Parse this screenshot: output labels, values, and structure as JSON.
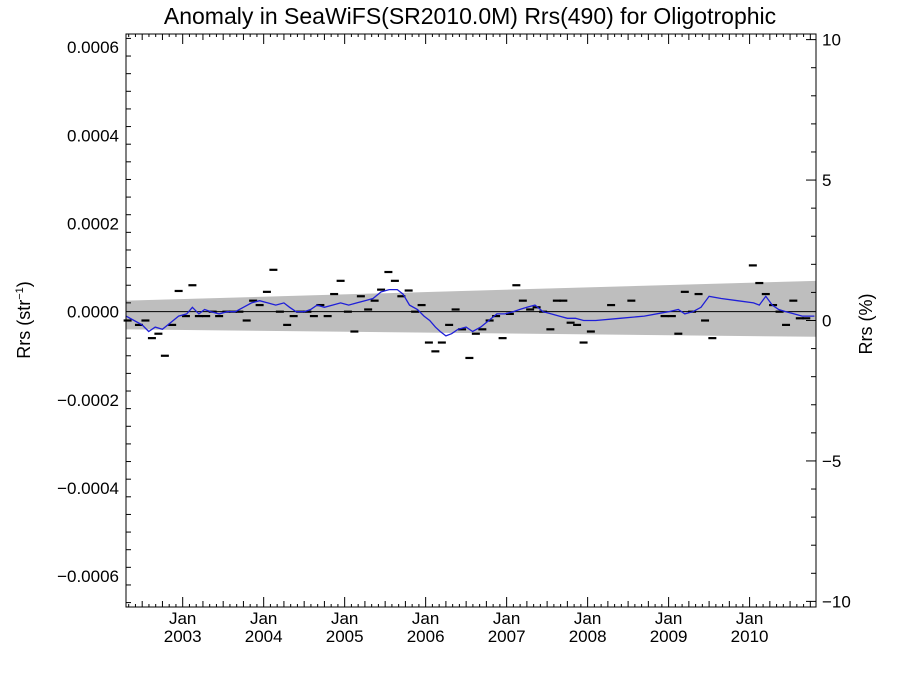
{
  "chart_data": {
    "type": "line",
    "title": "Anomaly in SeaWiFS(SR2010.0M) Rrs(490) for Oligotrophic",
    "ylabel_left": "Rrs (str",
    "ylabel_left_sup": "−1",
    "ylabel_left_close": ")",
    "ylabel_right": "Rrs (%)",
    "ylim": [
      -0.00067,
      0.00063
    ],
    "ylim_right": [
      -10.2,
      10.2
    ],
    "xlim": [
      2002.3,
      2010.82
    ],
    "left_ticks": [
      {
        "v": 0.0006,
        "label": "0.0006"
      },
      {
        "v": 0.0004,
        "label": "0.0004"
      },
      {
        "v": 0.0002,
        "label": "0.0002"
      },
      {
        "v": 0.0,
        "label": "0.0000"
      },
      {
        "v": -0.0002,
        "label": "−0.0002"
      },
      {
        "v": -0.0004,
        "label": "−0.0004"
      },
      {
        "v": -0.0006,
        "label": "−0.0006"
      }
    ],
    "right_ticks": [
      {
        "v": 10,
        "label": "10"
      },
      {
        "v": 5,
        "label": "5"
      },
      {
        "v": 0,
        "label": "0"
      },
      {
        "v": -5,
        "label": "−5"
      },
      {
        "v": -10,
        "label": "−10"
      }
    ],
    "x_ticks": [
      {
        "v": 2003.0,
        "month": "Jan",
        "year": "2003"
      },
      {
        "v": 2004.0,
        "month": "Jan",
        "year": "2004"
      },
      {
        "v": 2005.0,
        "month": "Jan",
        "year": "2005"
      },
      {
        "v": 2006.0,
        "month": "Jan",
        "year": "2006"
      },
      {
        "v": 2007.0,
        "month": "Jan",
        "year": "2007"
      },
      {
        "v": 2008.0,
        "month": "Jan",
        "year": "2008"
      },
      {
        "v": 2009.0,
        "month": "Jan",
        "year": "2009"
      },
      {
        "v": 2010.0,
        "month": "Jan",
        "year": "2010"
      }
    ],
    "band": {
      "x": [
        2002.3,
        2010.82
      ],
      "upper": [
        2.5e-05,
        7e-05
      ],
      "lower": [
        -4e-05,
        -5.7e-05
      ]
    },
    "points": [
      [
        2002.32,
        -2e-05
      ],
      [
        2002.46,
        -3e-05
      ],
      [
        2002.54,
        -2e-05
      ],
      [
        2002.62,
        -6e-05
      ],
      [
        2002.7,
        -5e-05
      ],
      [
        2002.78,
        -0.0001
      ],
      [
        2002.87,
        -3e-05
      ],
      [
        2002.95,
        4.7e-05
      ],
      [
        2003.04,
        -1e-05
      ],
      [
        2003.12,
        6e-05
      ],
      [
        2003.2,
        -1e-05
      ],
      [
        2003.29,
        -1e-05
      ],
      [
        2003.37,
        0.0
      ],
      [
        2003.45,
        -1e-05
      ],
      [
        2003.54,
        0.0
      ],
      [
        2003.62,
        0.0
      ],
      [
        2003.7,
        0.0
      ],
      [
        2003.79,
        -2e-05
      ],
      [
        2003.87,
        2.5e-05
      ],
      [
        2003.95,
        1.5e-05
      ],
      [
        2004.04,
        4.5e-05
      ],
      [
        2004.12,
        9.5e-05
      ],
      [
        2004.2,
        0.0
      ],
      [
        2004.29,
        -3e-05
      ],
      [
        2004.37,
        -1e-05
      ],
      [
        2004.45,
        0.0
      ],
      [
        2004.54,
        0.0
      ],
      [
        2004.62,
        -1e-05
      ],
      [
        2004.7,
        1.5e-05
      ],
      [
        2004.79,
        -1e-05
      ],
      [
        2004.87,
        4e-05
      ],
      [
        2004.95,
        7e-05
      ],
      [
        2005.04,
        0.0
      ],
      [
        2005.12,
        -4.5e-05
      ],
      [
        2005.2,
        3.5e-05
      ],
      [
        2005.29,
        5e-06
      ],
      [
        2005.37,
        2.5e-05
      ],
      [
        2005.45,
        5e-05
      ],
      [
        2005.54,
        9e-05
      ],
      [
        2005.62,
        7e-05
      ],
      [
        2005.7,
        3.5e-05
      ],
      [
        2005.79,
        4.8e-05
      ],
      [
        2005.87,
        0.0
      ],
      [
        2005.95,
        1.5e-05
      ],
      [
        2006.04,
        -7e-05
      ],
      [
        2006.12,
        -9e-05
      ],
      [
        2006.2,
        -7e-05
      ],
      [
        2006.29,
        -3e-05
      ],
      [
        2006.37,
        5e-06
      ],
      [
        2006.45,
        -4e-05
      ],
      [
        2006.54,
        -0.000105
      ],
      [
        2006.62,
        -5e-05
      ],
      [
        2006.7,
        -4e-05
      ],
      [
        2006.79,
        -2e-05
      ],
      [
        2006.87,
        -1e-05
      ],
      [
        2006.95,
        -6e-05
      ],
      [
        2007.04,
        -5e-06
      ],
      [
        2007.12,
        6e-05
      ],
      [
        2007.2,
        2.5e-05
      ],
      [
        2007.29,
        5e-06
      ],
      [
        2007.37,
        1e-05
      ],
      [
        2007.45,
        0.0
      ],
      [
        2007.54,
        -4e-05
      ],
      [
        2007.62,
        2.5e-05
      ],
      [
        2007.7,
        2.5e-05
      ],
      [
        2007.79,
        -2.5e-05
      ],
      [
        2007.87,
        -3e-05
      ],
      [
        2007.95,
        -7e-05
      ],
      [
        2008.04,
        -4.5e-05
      ],
      [
        2008.29,
        1.5e-05
      ],
      [
        2008.54,
        2.5e-05
      ],
      [
        2008.95,
        -1e-05
      ],
      [
        2009.04,
        -1e-05
      ],
      [
        2009.12,
        -5e-05
      ],
      [
        2009.2,
        4.5e-05
      ],
      [
        2009.29,
        0.0
      ],
      [
        2009.37,
        4e-05
      ],
      [
        2009.45,
        -2e-05
      ],
      [
        2009.54,
        -6e-05
      ],
      [
        2010.04,
        0.000105
      ],
      [
        2010.12,
        6.5e-05
      ],
      [
        2010.2,
        4e-05
      ],
      [
        2010.29,
        1.5e-05
      ],
      [
        2010.37,
        0.0
      ],
      [
        2010.45,
        -3e-05
      ],
      [
        2010.54,
        2.5e-05
      ],
      [
        2010.62,
        -1.5e-05
      ],
      [
        2010.7,
        -1.5e-05
      ]
    ],
    "smooth": [
      [
        2002.3,
        -1e-05
      ],
      [
        2002.4,
        -2e-05
      ],
      [
        2002.5,
        -3e-05
      ],
      [
        2002.58,
        -4.5e-05
      ],
      [
        2002.66,
        -3.5e-05
      ],
      [
        2002.75,
        -4e-05
      ],
      [
        2002.85,
        -2.5e-05
      ],
      [
        2002.95,
        -1e-05
      ],
      [
        2003.05,
        -5e-06
      ],
      [
        2003.12,
        1e-05
      ],
      [
        2003.2,
        -5e-06
      ],
      [
        2003.27,
        5e-06
      ],
      [
        2003.35,
        0.0
      ],
      [
        2003.45,
        -5e-06
      ],
      [
        2003.55,
        0.0
      ],
      [
        2003.65,
        0.0
      ],
      [
        2003.75,
        1e-05
      ],
      [
        2003.85,
        2e-05
      ],
      [
        2003.95,
        2.5e-05
      ],
      [
        2004.05,
        2e-05
      ],
      [
        2004.15,
        1.5e-05
      ],
      [
        2004.25,
        2e-05
      ],
      [
        2004.32,
        1e-05
      ],
      [
        2004.4,
        0.0
      ],
      [
        2004.5,
        0.0
      ],
      [
        2004.58,
        5e-06
      ],
      [
        2004.66,
        1.5e-05
      ],
      [
        2004.75,
        1e-05
      ],
      [
        2004.85,
        1.5e-05
      ],
      [
        2004.95,
        2e-05
      ],
      [
        2005.05,
        1.5e-05
      ],
      [
        2005.15,
        2e-05
      ],
      [
        2005.25,
        2.5e-05
      ],
      [
        2005.35,
        3e-05
      ],
      [
        2005.45,
        4.5e-05
      ],
      [
        2005.55,
        5e-05
      ],
      [
        2005.65,
        5e-05
      ],
      [
        2005.72,
        4e-05
      ],
      [
        2005.8,
        1.5e-05
      ],
      [
        2005.9,
        5e-06
      ],
      [
        2005.98,
        -1e-05
      ],
      [
        2006.05,
        -2e-05
      ],
      [
        2006.12,
        -3.5e-05
      ],
      [
        2006.18,
        -4.5e-05
      ],
      [
        2006.25,
        -5.5e-05
      ],
      [
        2006.32,
        -5e-05
      ],
      [
        2006.4,
        -4e-05
      ],
      [
        2006.5,
        -3.5e-05
      ],
      [
        2006.58,
        -4.5e-05
      ],
      [
        2006.68,
        -3.5e-05
      ],
      [
        2006.78,
        -2e-05
      ],
      [
        2006.88,
        -5e-06
      ],
      [
        2006.98,
        -5e-06
      ],
      [
        2007.08,
        0.0
      ],
      [
        2007.16,
        5e-06
      ],
      [
        2007.25,
        1e-05
      ],
      [
        2007.35,
        1.5e-05
      ],
      [
        2007.45,
        0.0
      ],
      [
        2007.55,
        -5e-06
      ],
      [
        2007.65,
        -1e-05
      ],
      [
        2007.75,
        -1.5e-05
      ],
      [
        2007.85,
        -1.5e-05
      ],
      [
        2007.95,
        -2e-05
      ],
      [
        2008.1,
        -2e-05
      ],
      [
        2008.4,
        -1.5e-05
      ],
      [
        2008.7,
        -1e-05
      ],
      [
        2009.0,
        0.0
      ],
      [
        2009.12,
        5e-06
      ],
      [
        2009.2,
        -5e-06
      ],
      [
        2009.3,
        0.0
      ],
      [
        2009.4,
        1e-05
      ],
      [
        2009.5,
        3.5e-05
      ],
      [
        2009.65,
        3e-05
      ],
      [
        2009.85,
        2.5e-05
      ],
      [
        2010.05,
        2e-05
      ],
      [
        2010.12,
        1.5e-05
      ],
      [
        2010.2,
        3.5e-05
      ],
      [
        2010.28,
        1.5e-05
      ],
      [
        2010.36,
        5e-06
      ],
      [
        2010.45,
        0.0
      ],
      [
        2010.55,
        -5e-06
      ],
      [
        2010.65,
        -1e-05
      ],
      [
        2010.8,
        -1e-05
      ]
    ]
  },
  "colors": {
    "band": "#bebebe",
    "smooth": "#1f1fd8",
    "axis": "#000000"
  }
}
